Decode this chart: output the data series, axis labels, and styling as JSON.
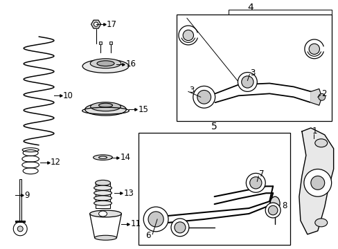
{
  "bg_color": "#ffffff",
  "line_color": "#000000",
  "fig_w": 4.89,
  "fig_h": 3.6,
  "dpi": 100
}
